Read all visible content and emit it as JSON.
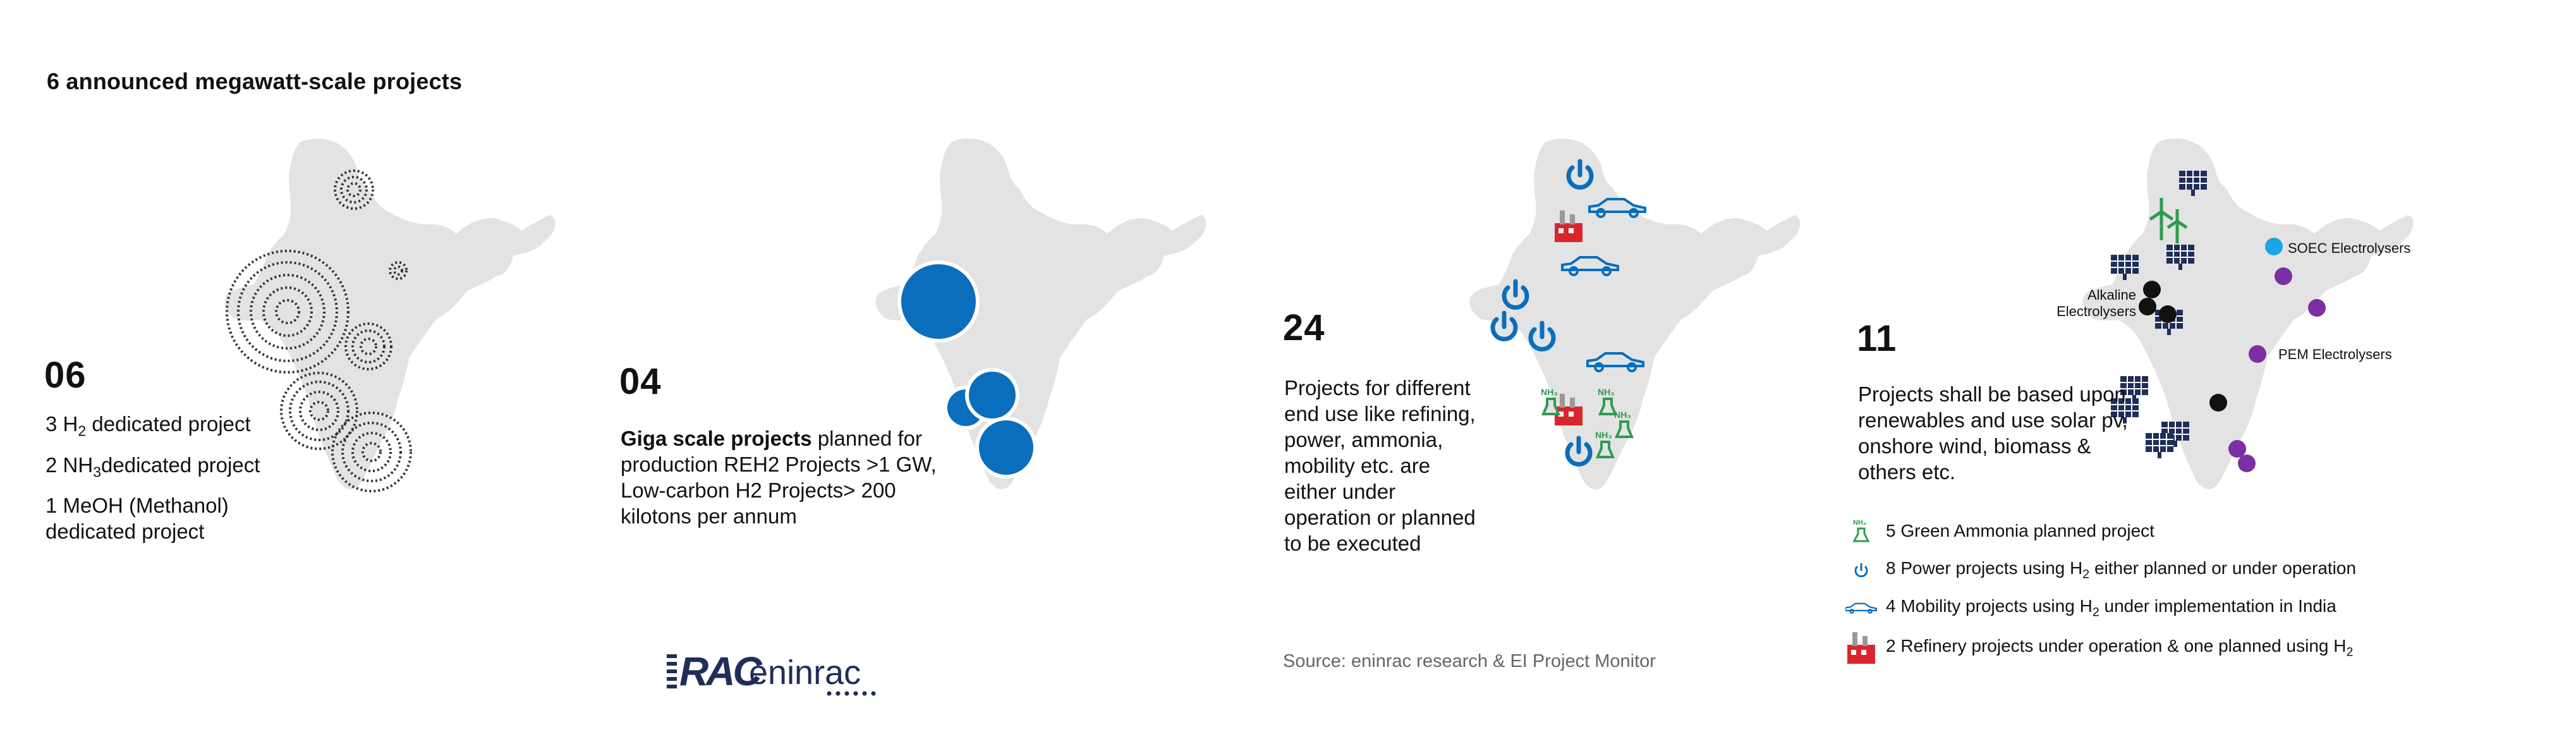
{
  "title": "6 announced megawatt-scale projects",
  "panel1": {
    "number": "06",
    "lines": [
      {
        "pre": "3 H",
        "sub": "2",
        "post": " dedicated project"
      },
      {
        "pre": "2 NH",
        "sub": "3",
        "post": "dedicated project"
      },
      {
        "pre": "1 MeOH (Methanol)",
        "sub": "",
        "post": ""
      },
      {
        "pre": "dedicated project",
        "sub": "",
        "post": ""
      }
    ]
  },
  "panel2": {
    "number": "04",
    "bold": "Giga scale projects",
    "text1": " planned for",
    "text2": "production  REH2 Projects >1 GW,",
    "text3": "Low-carbon H2 Projects> 200",
    "text4": "kilotons per annum"
  },
  "panel3": {
    "number": "24",
    "lines": [
      "Projects for different",
      "end use like refining,",
      "power, ammonia,",
      "mobility etc. are",
      "either under",
      "operation or planned",
      "to be executed"
    ]
  },
  "panel4": {
    "number": "11",
    "lines": [
      "Projects shall be based upon",
      "renewables and use solar pv,",
      "onshore wind, biomass &",
      "others etc."
    ],
    "labels": {
      "soec": "SOEC Electrolysers",
      "alkaline1": "Alkaline",
      "alkaline2": "Electrolysers",
      "pem": "PEM Electrolysers"
    }
  },
  "legend": [
    {
      "icon": "ammonia-flask-icon",
      "pre": "5 Green Ammonia planned project",
      "sub": "",
      "post": ""
    },
    {
      "icon": "power-icon",
      "pre": "8 Power projects using H",
      "sub": "2",
      "post": " either planned or under operation"
    },
    {
      "icon": "car-icon",
      "pre": "4 Mobility projects using H",
      "sub": "2",
      "post": " under implementation in India"
    },
    {
      "icon": "refinery-icon",
      "pre": "2 Refinery projects under operation & one planned using H",
      "sub": "2",
      "post": ""
    }
  ],
  "logo": {
    "mark": "RAC",
    "word": "eninrac"
  },
  "source": "Source: eninrac research & EI Project Monitor",
  "colors": {
    "map": "#e3e3e3",
    "blue": "#0a6ebd",
    "navy": "#1f2d5a",
    "green": "#2f9a52",
    "purple": "#7b2fa3",
    "cyan": "#1aa6e6",
    "red": "#d9262c"
  }
}
